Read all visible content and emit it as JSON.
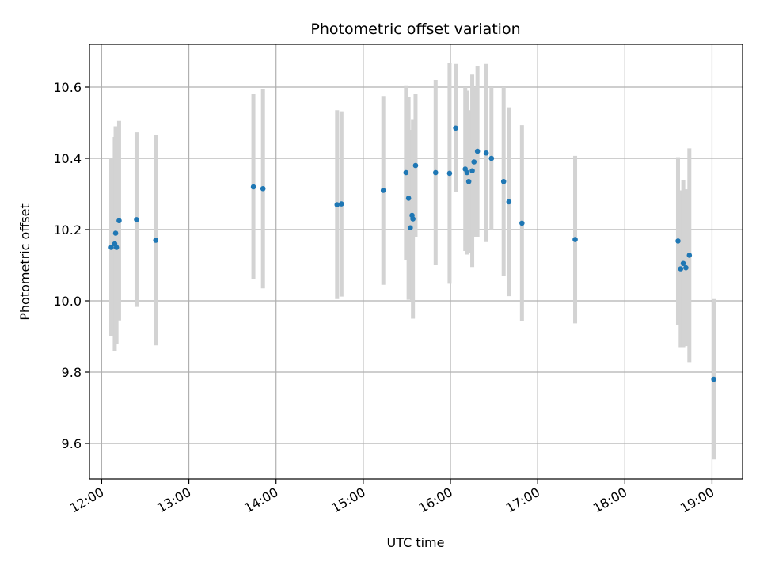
{
  "chart_data": {
    "type": "scatter",
    "title": "Photometric offset variation",
    "xlabel": "UTC time",
    "ylabel": "Photometric offset",
    "x_unit": "hours UTC",
    "xlim": [
      11.86,
      19.35
    ],
    "ylim": [
      9.5,
      10.72
    ],
    "xticks": [
      12,
      13,
      14,
      15,
      16,
      17,
      18,
      19
    ],
    "xtick_labels": [
      "12:00",
      "13:00",
      "14:00",
      "15:00",
      "16:00",
      "17:00",
      "18:00",
      "19:00"
    ],
    "yticks": [
      9.6,
      9.8,
      10.0,
      10.2,
      10.4,
      10.6
    ],
    "ytick_labels": [
      "9.6",
      "9.8",
      "10.0",
      "10.2",
      "10.4",
      "10.6"
    ],
    "grid": true,
    "point_color": "#1f77b4",
    "errorbar_color": "#d3d3d3",
    "points": [
      {
        "x": 12.11,
        "y": 10.15,
        "err": 0.25
      },
      {
        "x": 12.15,
        "y": 10.16,
        "err": 0.3
      },
      {
        "x": 12.16,
        "y": 10.19,
        "err": 0.3
      },
      {
        "x": 12.17,
        "y": 10.15,
        "err": 0.27
      },
      {
        "x": 12.2,
        "y": 10.225,
        "err": 0.28
      },
      {
        "x": 12.4,
        "y": 10.228,
        "err": 0.245
      },
      {
        "x": 12.62,
        "y": 10.17,
        "err": 0.295
      },
      {
        "x": 13.74,
        "y": 10.32,
        "err": 0.26
      },
      {
        "x": 13.85,
        "y": 10.315,
        "err": 0.28
      },
      {
        "x": 14.7,
        "y": 10.27,
        "err": 0.265
      },
      {
        "x": 14.75,
        "y": 10.272,
        "err": 0.26
      },
      {
        "x": 15.23,
        "y": 10.31,
        "err": 0.265
      },
      {
        "x": 15.49,
        "y": 10.36,
        "err": 0.245
      },
      {
        "x": 15.52,
        "y": 10.288,
        "err": 0.285
      },
      {
        "x": 15.54,
        "y": 10.205,
        "err": 0.2
      },
      {
        "x": 15.56,
        "y": 10.24,
        "err": 0.24
      },
      {
        "x": 15.57,
        "y": 10.23,
        "err": 0.28
      },
      {
        "x": 15.6,
        "y": 10.38,
        "err": 0.2
      },
      {
        "x": 15.83,
        "y": 10.36,
        "err": 0.26
      },
      {
        "x": 15.99,
        "y": 10.358,
        "err": 0.31
      },
      {
        "x": 16.06,
        "y": 10.485,
        "err": 0.18
      },
      {
        "x": 16.17,
        "y": 10.37,
        "err": 0.23
      },
      {
        "x": 16.19,
        "y": 10.36,
        "err": 0.23
      },
      {
        "x": 16.21,
        "y": 10.335,
        "err": 0.2
      },
      {
        "x": 16.25,
        "y": 10.365,
        "err": 0.27
      },
      {
        "x": 16.27,
        "y": 10.39,
        "err": 0.21
      },
      {
        "x": 16.31,
        "y": 10.42,
        "err": 0.24
      },
      {
        "x": 16.41,
        "y": 10.415,
        "err": 0.25
      },
      {
        "x": 16.47,
        "y": 10.4,
        "err": 0.2
      },
      {
        "x": 16.61,
        "y": 10.335,
        "err": 0.265
      },
      {
        "x": 16.67,
        "y": 10.278,
        "err": 0.265
      },
      {
        "x": 16.82,
        "y": 10.218,
        "err": 0.275
      },
      {
        "x": 17.43,
        "y": 10.172,
        "err": 0.235
      },
      {
        "x": 18.61,
        "y": 10.168,
        "err": 0.235
      },
      {
        "x": 18.64,
        "y": 10.09,
        "err": 0.22
      },
      {
        "x": 18.67,
        "y": 10.105,
        "err": 0.235
      },
      {
        "x": 18.7,
        "y": 10.093,
        "err": 0.22
      },
      {
        "x": 18.74,
        "y": 10.128,
        "err": 0.3
      },
      {
        "x": 19.02,
        "y": 9.78,
        "err": 0.225
      }
    ]
  }
}
